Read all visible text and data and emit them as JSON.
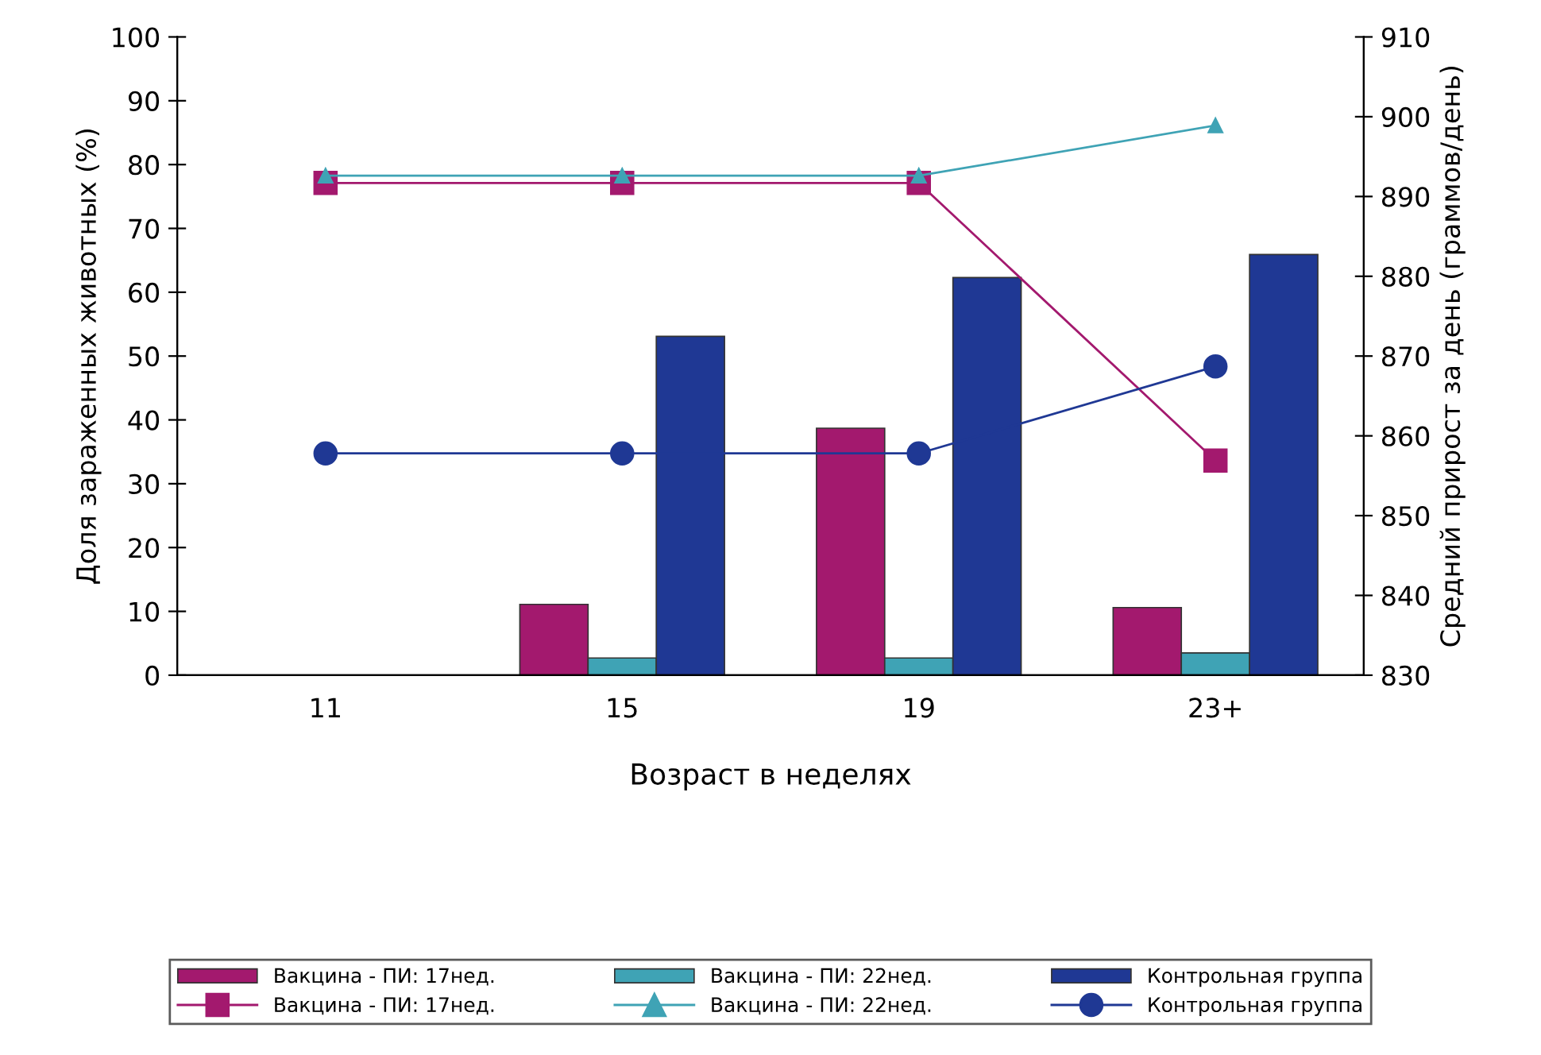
{
  "chart_data": {
    "type": "bar",
    "xlabel": "Возраст в неделях",
    "ylabel": "Доля зараженных животных (%)",
    "y2label": "Средний прирост за день (граммов/день)",
    "categories": [
      "11",
      "15",
      "19",
      "23+"
    ],
    "series": [
      {
        "name": "Вакцина - ПИ: 17нед.",
        "color": "#a3196e",
        "values": [
          null,
          11.1,
          38.7,
          10.6
        ]
      },
      {
        "name": "Вакцина - ПИ: 17нед.",
        "color": "#a3196e",
        "type": "line",
        "axis": "y2",
        "marker": "square",
        "values": [
          891.7,
          891.7,
          891.7,
          856.9
        ]
      },
      {
        "name": "Вакцина - ПИ: 22нед.",
        "color": "#3fa3b5",
        "values": [
          null,
          2.7,
          2.7,
          3.5
        ]
      },
      {
        "name": "Вакцина - ПИ: 22нед.",
        "color": "#3fa3b5",
        "type": "line",
        "axis": "y2",
        "marker": "triangle",
        "values": [
          892.6,
          892.6,
          892.6,
          898.9
        ]
      },
      {
        "name": "Контрольная группа",
        "color": "#1f3894",
        "values": [
          null,
          53.1,
          62.3,
          65.9
        ]
      },
      {
        "name": "Контрольная группа",
        "color": "#1f3894",
        "type": "line",
        "axis": "y2",
        "marker": "circle",
        "values": [
          857.8,
          857.8,
          857.8,
          868.7
        ]
      }
    ],
    "ylim": [
      0,
      100
    ],
    "yticks": [
      0,
      10,
      20,
      30,
      40,
      50,
      60,
      70,
      80,
      90,
      100
    ],
    "y2lim": [
      830,
      910
    ],
    "y2ticks": [
      830,
      840,
      850,
      860,
      870,
      880,
      890,
      900,
      910
    ],
    "grid": false,
    "legend": "bottom"
  }
}
